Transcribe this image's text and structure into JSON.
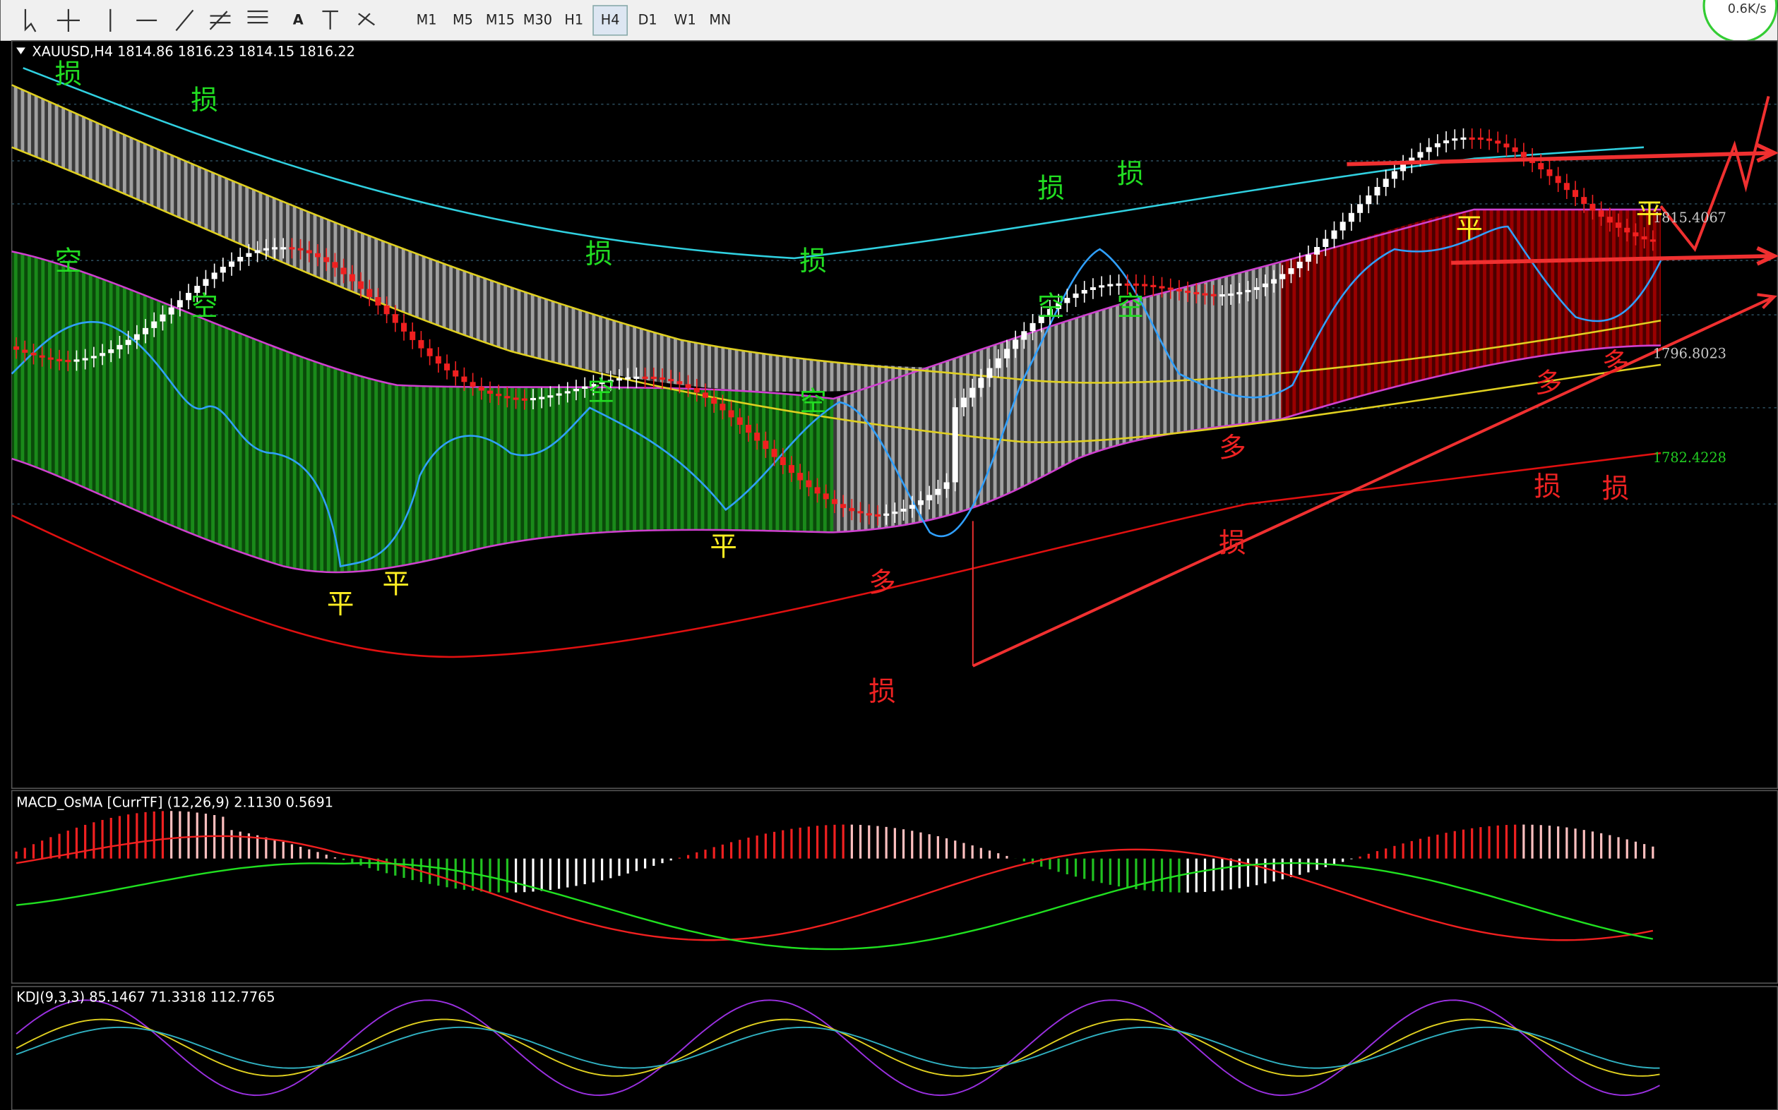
{
  "toolbar": {
    "timeframes": [
      "M1",
      "M5",
      "M15",
      "M30",
      "H1",
      "H4",
      "D1",
      "W1",
      "MN"
    ],
    "active": "H4",
    "speed": "0.6K/s"
  },
  "chart": {
    "header": "XAUUSD,H4  1814.86 1816.23 1814.15 1816.22",
    "price_labels": [
      {
        "text": "1815.4067",
        "color": "#c8c8c8"
      },
      {
        "text": "1796.8023",
        "color": "#c8c8c8"
      },
      {
        "text": "1782.4228",
        "color": "#22cc22"
      }
    ],
    "annotations": [
      {
        "text": "损",
        "color": "#22dd22"
      },
      {
        "text": "损",
        "color": "#22dd22"
      },
      {
        "text": "损",
        "color": "#22dd22"
      },
      {
        "text": "损",
        "color": "#22dd22"
      },
      {
        "text": "损",
        "color": "#22dd22"
      },
      {
        "text": "损",
        "color": "#22dd22"
      },
      {
        "text": "空",
        "color": "#22dd22"
      },
      {
        "text": "空",
        "color": "#22dd22"
      },
      {
        "text": "空",
        "color": "#22dd22"
      },
      {
        "text": "空",
        "color": "#22dd22"
      },
      {
        "text": "空",
        "color": "#22dd22"
      },
      {
        "text": "空",
        "color": "#22dd22"
      },
      {
        "text": "平",
        "color": "#ffee22"
      },
      {
        "text": "平",
        "color": "#ffee22"
      },
      {
        "text": "平",
        "color": "#ffee22"
      },
      {
        "text": "平",
        "color": "#ffee22"
      },
      {
        "text": "平",
        "color": "#ffee22"
      },
      {
        "text": "多",
        "color": "#ee2222"
      },
      {
        "text": "多",
        "color": "#ee2222"
      },
      {
        "text": "多",
        "color": "#ee2222"
      },
      {
        "text": "多",
        "color": "#ee2222"
      },
      {
        "text": "损",
        "color": "#ee2222"
      },
      {
        "text": "损",
        "color": "#ee2222"
      },
      {
        "text": "损",
        "color": "#ee2222"
      },
      {
        "text": "损",
        "color": "#ee2222"
      }
    ]
  },
  "macd": {
    "header": "MACD_OsMA [CurrTF] (12,26,9) 2.1130 0.5691"
  },
  "kdj": {
    "header": "KDJ(9,3,3) 85.1467 71.3318 112.7765"
  }
}
